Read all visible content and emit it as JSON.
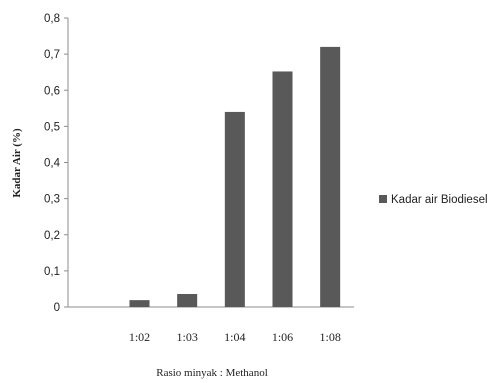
{
  "chart_data": {
    "type": "bar",
    "categories": [
      "",
      "1:02",
      "1:03",
      "1:04",
      "1:06",
      "1:08"
    ],
    "series": [
      {
        "name": "Kadar air Biodiesel",
        "values": [
          0,
          0.019,
          0.036,
          0.54,
          0.652,
          0.72
        ]
      }
    ],
    "xlabel": "Rasio minyak : Methanol",
    "ylabel": "Kadar Air (%)",
    "ylim": [
      0,
      0.8
    ],
    "yticks": [
      "0",
      "0,1",
      "0,2",
      "0,3",
      "0,4",
      "0,5",
      "0,6",
      "0,7",
      "0,8"
    ],
    "grid": false,
    "legend_position": "right",
    "colors": {
      "bar": "#595959",
      "axis": "#8c8c8c"
    }
  }
}
